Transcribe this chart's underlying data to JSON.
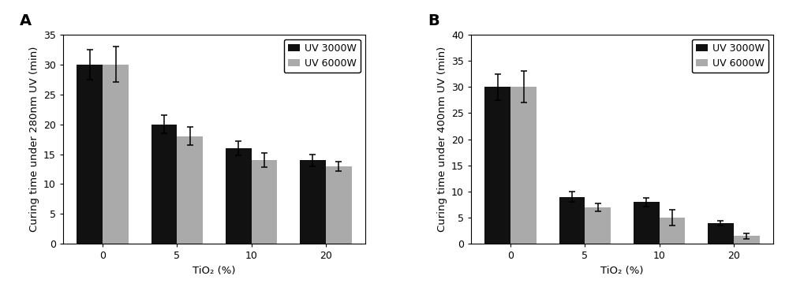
{
  "panel_A": {
    "label": "A",
    "ylabel": "Curing time under 280nm UV (min)",
    "xlabel": "TiO₂ (%)",
    "ylim": [
      0,
      35
    ],
    "yticks": [
      0,
      5,
      10,
      15,
      20,
      25,
      30,
      35
    ],
    "categories": [
      "0",
      "5",
      "10",
      "20"
    ],
    "uv3000_values": [
      30,
      20,
      16,
      14
    ],
    "uv6000_values": [
      30,
      18,
      14,
      13
    ],
    "uv3000_errors": [
      2.5,
      1.5,
      1.2,
      1.0
    ],
    "uv6000_errors": [
      3.0,
      1.5,
      1.2,
      0.8
    ]
  },
  "panel_B": {
    "label": "B",
    "ylabel": "Curing time under 400nm UV (min)",
    "xlabel": "TiO₂ (%)",
    "ylim": [
      0,
      40
    ],
    "yticks": [
      0,
      5,
      10,
      15,
      20,
      25,
      30,
      35,
      40
    ],
    "categories": [
      "0",
      "5",
      "10",
      "20"
    ],
    "uv3000_values": [
      30,
      9,
      8,
      4
    ],
    "uv6000_values": [
      30,
      7,
      5,
      1.5
    ],
    "uv3000_errors": [
      2.5,
      1.0,
      0.8,
      0.5
    ],
    "uv6000_errors": [
      3.0,
      0.8,
      1.5,
      0.5
    ]
  },
  "bar_width": 0.35,
  "color_3000w": "#111111",
  "color_6000w": "#aaaaaa",
  "legend_labels": [
    "UV 3000W",
    "UV 6000W"
  ],
  "background_color": "#ffffff",
  "capsize": 3,
  "fontsize_label": 9.5,
  "fontsize_tick": 9,
  "fontsize_legend": 9,
  "fontsize_panel_label": 14
}
